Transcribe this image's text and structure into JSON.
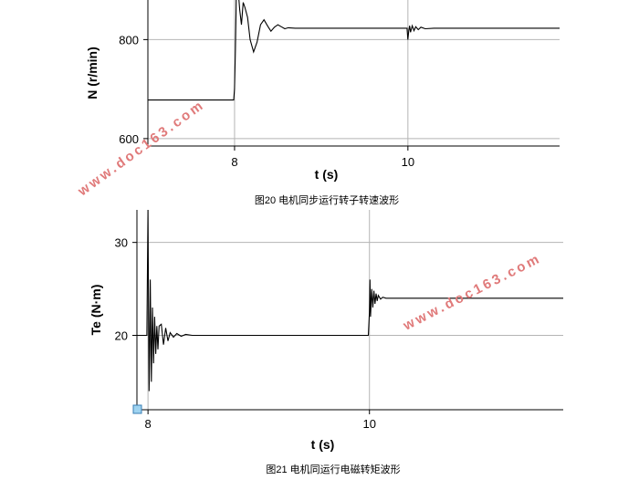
{
  "colors": {
    "line": "#000000",
    "grid": "#b4b4b4",
    "axis": "#000000",
    "watermark": "#e07a7a",
    "marker": "#9fd3f0"
  },
  "watermark": {
    "text": "www.doc163.com"
  },
  "chart_data": [
    {
      "type": "line",
      "title": "",
      "caption": "图20 电机同步运行转子转速波形",
      "xlabel": "t (s)",
      "ylabel": "N (r/min)",
      "xlim": [
        7.0,
        11.75
      ],
      "ylim": [
        585,
        880
      ],
      "xticks": [
        {
          "value": 8,
          "label": "8"
        },
        {
          "value": 10,
          "label": "10"
        }
      ],
      "yticks": [
        {
          "value": 600,
          "label": "600"
        },
        {
          "value": 800,
          "label": "800"
        }
      ],
      "xgrid": [
        8,
        10
      ],
      "ygrid": [
        600,
        800
      ],
      "grid": true,
      "series": [
        {
          "x": [
            7.0,
            7.99,
            8.0,
            8.01,
            8.02,
            8.03,
            8.04,
            8.06,
            8.08,
            8.1,
            8.12,
            8.15,
            8.18,
            8.22,
            8.26,
            8.3,
            8.34,
            8.38,
            8.42,
            8.46,
            8.5,
            8.54,
            8.58,
            8.62,
            8.7,
            8.8,
            9.0,
            9.5,
            9.99,
            10.0,
            10.01,
            10.02,
            10.03,
            10.05,
            10.07,
            10.09,
            10.12,
            10.15,
            10.2,
            10.3,
            10.5,
            11.0,
            11.75
          ],
          "y": [
            678,
            678,
            700,
            780,
            880,
            920,
            905,
            860,
            830,
            875,
            865,
            845,
            800,
            775,
            795,
            830,
            840,
            828,
            817,
            825,
            830,
            826,
            822,
            824,
            823,
            823,
            823,
            823,
            823,
            800,
            818,
            828,
            815,
            828,
            818,
            826,
            820,
            825,
            822,
            823,
            823,
            823,
            823
          ]
        }
      ]
    },
    {
      "type": "line",
      "title": "",
      "caption": "图21 电机同运行电磁转矩波形",
      "xlabel": "t (s)",
      "ylabel": "Te (N·m)",
      "xlim": [
        7.9,
        11.75
      ],
      "ylim": [
        12,
        33.5
      ],
      "xticks": [
        {
          "value": 8,
          "label": "8"
        },
        {
          "value": 10,
          "label": "10"
        }
      ],
      "yticks": [
        {
          "value": 20,
          "label": "20"
        },
        {
          "value": 30,
          "label": "30"
        }
      ],
      "xgrid": [
        8,
        10
      ],
      "ygrid": [
        20,
        30
      ],
      "grid": true,
      "series": [
        {
          "x": [
            7.9,
            7.99,
            8.0,
            8.005,
            8.01,
            8.015,
            8.02,
            8.03,
            8.04,
            8.05,
            8.06,
            8.07,
            8.08,
            8.09,
            8.1,
            8.12,
            8.14,
            8.16,
            8.18,
            8.2,
            8.23,
            8.26,
            8.3,
            8.34,
            8.4,
            8.5,
            8.7,
            9.0,
            9.5,
            9.99,
            10.0,
            10.005,
            10.01,
            10.02,
            10.03,
            10.04,
            10.05,
            10.06,
            10.07,
            10.08,
            10.1,
            10.12,
            10.15,
            10.2,
            10.3,
            10.5,
            11.0,
            11.75
          ],
          "y": [
            20,
            20,
            33.5,
            23,
            14,
            18,
            26,
            15,
            23,
            17,
            22,
            18,
            21,
            18.5,
            21,
            21.2,
            19,
            20.8,
            19.4,
            20.3,
            19.8,
            20.2,
            19.9,
            20.1,
            20,
            20,
            20,
            20,
            20,
            20,
            22.5,
            26,
            22,
            25,
            23,
            24.8,
            23.4,
            24.5,
            23.7,
            24.3,
            23.9,
            24.1,
            24,
            24,
            24,
            24,
            24,
            24
          ]
        }
      ]
    }
  ]
}
